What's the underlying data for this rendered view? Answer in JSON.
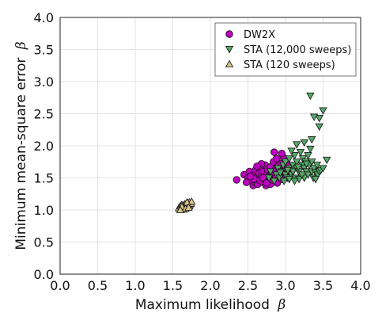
{
  "chart_data": {
    "type": "scatter",
    "xlabel": "Maximum likelihood",
    "ylabel": "Minimum mean-square error",
    "axis_symbol": "β",
    "xlim": [
      0.0,
      4.0
    ],
    "ylim": [
      0.0,
      4.0
    ],
    "x_ticks": [
      "0.0",
      "0.5",
      "1.0",
      "1.5",
      "2.0",
      "2.5",
      "3.0",
      "3.5",
      "4.0"
    ],
    "y_ticks": [
      "0.0",
      "0.5",
      "1.0",
      "1.5",
      "2.0",
      "2.5",
      "3.0",
      "3.5",
      "4.0"
    ],
    "grid": true,
    "legend_position": "top-right",
    "series": [
      {
        "name": "DW2X",
        "marker": "circle",
        "color": "#bf00bf",
        "points": [
          [
            2.35,
            1.47
          ],
          [
            2.45,
            1.55
          ],
          [
            2.5,
            1.5
          ],
          [
            2.52,
            1.6
          ],
          [
            2.55,
            1.45
          ],
          [
            2.57,
            1.38
          ],
          [
            2.58,
            1.55
          ],
          [
            2.6,
            1.42
          ],
          [
            2.6,
            1.62
          ],
          [
            2.62,
            1.5
          ],
          [
            2.63,
            1.4
          ],
          [
            2.65,
            1.57
          ],
          [
            2.66,
            1.46
          ],
          [
            2.67,
            1.66
          ],
          [
            2.68,
            1.53
          ],
          [
            2.7,
            1.43
          ],
          [
            2.7,
            1.6
          ],
          [
            2.72,
            1.48
          ],
          [
            2.73,
            1.7
          ],
          [
            2.74,
            1.38
          ],
          [
            2.75,
            1.55
          ],
          [
            2.76,
            1.63
          ],
          [
            2.77,
            1.45
          ],
          [
            2.78,
            1.52
          ],
          [
            2.8,
            1.67
          ],
          [
            2.8,
            1.4
          ],
          [
            2.82,
            1.58
          ],
          [
            2.83,
            1.47
          ],
          [
            2.84,
            1.75
          ],
          [
            2.85,
            1.55
          ],
          [
            2.86,
            1.62
          ],
          [
            2.87,
            1.5
          ],
          [
            2.88,
            1.8
          ],
          [
            2.89,
            1.42
          ],
          [
            2.9,
            1.57
          ],
          [
            2.9,
            1.68
          ],
          [
            2.92,
            1.52
          ],
          [
            2.93,
            1.63
          ],
          [
            2.94,
            1.72
          ],
          [
            2.95,
            1.48
          ],
          [
            2.96,
            1.58
          ],
          [
            2.97,
            1.82
          ],
          [
            2.98,
            1.65
          ],
          [
            3.0,
            1.55
          ],
          [
            3.02,
            1.7
          ],
          [
            3.03,
            1.5
          ],
          [
            3.05,
            1.6
          ],
          [
            2.85,
            1.9
          ],
          [
            2.95,
            1.88
          ],
          [
            2.68,
            1.72
          ],
          [
            2.58,
            1.48
          ],
          [
            2.62,
            1.68
          ],
          [
            2.53,
            1.52
          ],
          [
            2.48,
            1.43
          ],
          [
            2.7,
            1.5
          ],
          [
            2.75,
            1.42
          ]
        ]
      },
      {
        "name": "STA (12,000 sweeps)",
        "marker": "triangle-down",
        "color": "#55a868",
        "points": [
          [
            2.78,
            1.5
          ],
          [
            2.8,
            1.6
          ],
          [
            2.85,
            1.45
          ],
          [
            2.88,
            1.55
          ],
          [
            2.9,
            1.65
          ],
          [
            2.92,
            1.5
          ],
          [
            2.95,
            1.6
          ],
          [
            2.97,
            1.7
          ],
          [
            3.0,
            1.55
          ],
          [
            3.0,
            1.75
          ],
          [
            3.02,
            1.5
          ],
          [
            3.05,
            1.65
          ],
          [
            3.05,
            1.8
          ],
          [
            3.08,
            1.55
          ],
          [
            3.1,
            1.7
          ],
          [
            3.1,
            1.6
          ],
          [
            3.12,
            1.85
          ],
          [
            3.13,
            1.5
          ],
          [
            3.15,
            1.65
          ],
          [
            3.15,
            1.75
          ],
          [
            3.18,
            1.6
          ],
          [
            3.2,
            1.9
          ],
          [
            3.2,
            1.55
          ],
          [
            3.22,
            1.7
          ],
          [
            3.23,
            1.8
          ],
          [
            3.25,
            1.5
          ],
          [
            3.25,
            1.65
          ],
          [
            3.27,
            1.75
          ],
          [
            3.28,
            1.6
          ],
          [
            3.3,
            1.85
          ],
          [
            3.3,
            1.55
          ],
          [
            3.32,
            1.7
          ],
          [
            3.33,
            1.95
          ],
          [
            3.35,
            1.6
          ],
          [
            3.35,
            1.75
          ],
          [
            3.37,
            1.5
          ],
          [
            3.38,
            1.65
          ],
          [
            3.4,
            1.58
          ],
          [
            3.42,
            1.7
          ],
          [
            3.43,
            1.55
          ],
          [
            3.45,
            1.6
          ],
          [
            3.47,
            1.62
          ],
          [
            3.5,
            1.65
          ],
          [
            3.55,
            1.78
          ],
          [
            3.18,
            1.48
          ],
          [
            3.08,
            1.92
          ],
          [
            3.12,
            1.45
          ],
          [
            2.98,
            1.45
          ],
          [
            3.15,
            2.02
          ],
          [
            3.25,
            2.05
          ],
          [
            3.35,
            2.1
          ],
          [
            3.45,
            2.3
          ],
          [
            3.5,
            2.55
          ],
          [
            3.45,
            2.43
          ],
          [
            3.38,
            2.45
          ],
          [
            3.33,
            2.78
          ],
          [
            3.22,
            1.55
          ],
          [
            3.28,
            1.72
          ],
          [
            3.03,
            1.62
          ],
          [
            2.93,
            1.58
          ],
          [
            3.17,
            1.67
          ],
          [
            3.4,
            1.48
          ],
          [
            3.05,
            1.48
          ]
        ]
      },
      {
        "name": "STA (120 sweeps)",
        "marker": "triangle-up",
        "color": "#d8c58a",
        "points": [
          [
            1.58,
            1.03
          ],
          [
            1.6,
            1.06
          ],
          [
            1.61,
            1.02
          ],
          [
            1.62,
            1.08
          ],
          [
            1.63,
            1.04
          ],
          [
            1.64,
            1.01
          ],
          [
            1.64,
            1.07
          ],
          [
            1.65,
            1.05
          ],
          [
            1.66,
            1.09
          ],
          [
            1.66,
            1.03
          ],
          [
            1.67,
            1.06
          ],
          [
            1.68,
            1.04
          ],
          [
            1.68,
            1.1
          ],
          [
            1.69,
            1.07
          ],
          [
            1.7,
            1.05
          ],
          [
            1.7,
            1.11
          ],
          [
            1.71,
            1.08
          ],
          [
            1.72,
            1.06
          ],
          [
            1.72,
            1.12
          ],
          [
            1.73,
            1.09
          ],
          [
            1.74,
            1.1
          ],
          [
            1.75,
            1.13
          ],
          [
            1.62,
            1.05
          ],
          [
            1.67,
            1.02
          ],
          [
            1.6,
            1.0
          ],
          [
            1.69,
            1.12
          ],
          [
            1.71,
            1.04
          ]
        ]
      }
    ]
  }
}
